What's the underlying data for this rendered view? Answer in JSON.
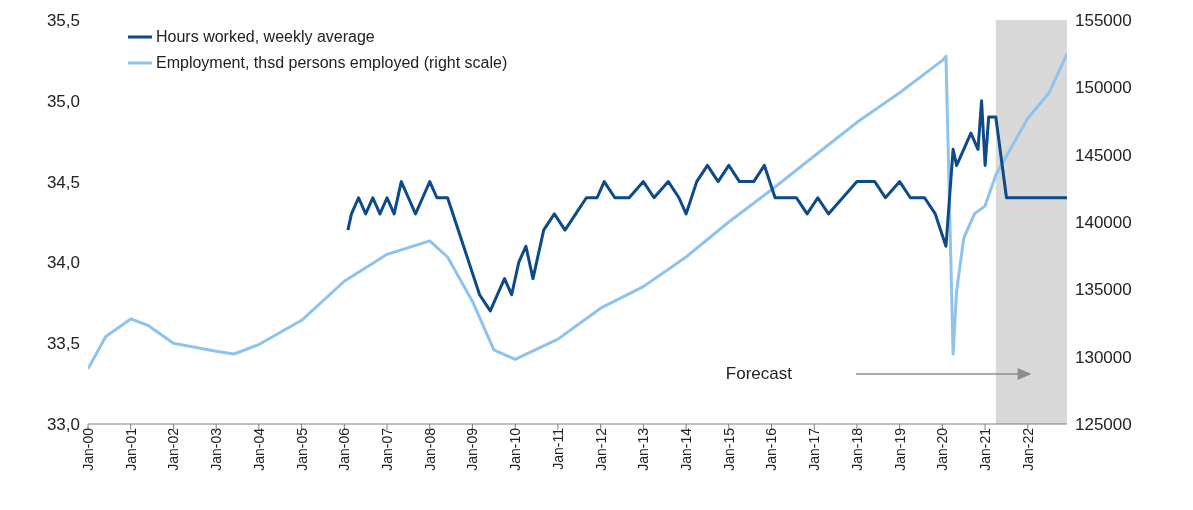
{
  "chart_data": {
    "type": "line",
    "legend": "top left",
    "xlim": [
      "2000-01",
      "2022-12"
    ],
    "xticks": [
      {
        "value": "2000-01",
        "label": "Jan-00"
      },
      {
        "value": "2001-01",
        "label": "Jan-01"
      },
      {
        "value": "2002-01",
        "label": "Jan-02"
      },
      {
        "value": "2003-01",
        "label": "Jan-03"
      },
      {
        "value": "2004-01",
        "label": "Jan-04"
      },
      {
        "value": "2005-01",
        "label": "Jan-05"
      },
      {
        "value": "2006-01",
        "label": "Jan-06"
      },
      {
        "value": "2007-01",
        "label": "Jan-07"
      },
      {
        "value": "2008-01",
        "label": "Jan-08"
      },
      {
        "value": "2009-01",
        "label": "Jan-09"
      },
      {
        "value": "2010-01",
        "label": "Jan-10"
      },
      {
        "value": "2011-01",
        "label": "Jan-11"
      },
      {
        "value": "2012-01",
        "label": "Jan-12"
      },
      {
        "value": "2013-01",
        "label": "Jan-13"
      },
      {
        "value": "2014-01",
        "label": "Jan-14"
      },
      {
        "value": "2015-01",
        "label": "Jan-15"
      },
      {
        "value": "2016-01",
        "label": "Jan-16"
      },
      {
        "value": "2017-01",
        "label": "Jan-17"
      },
      {
        "value": "2018-01",
        "label": "Jan-18"
      },
      {
        "value": "2019-01",
        "label": "Jan-19"
      },
      {
        "value": "2020-01",
        "label": "Jan-20"
      },
      {
        "value": "2021-01",
        "label": "Jan-21"
      },
      {
        "value": "2022-01",
        "label": "Jan-22"
      }
    ],
    "ylim": [
      33,
      35.5
    ],
    "yticks": [
      {
        "value": 33,
        "label": "33,0"
      },
      {
        "value": 33.5,
        "label": "33,5"
      },
      {
        "value": 34,
        "label": "34,0"
      },
      {
        "value": 34.5,
        "label": "34,5"
      },
      {
        "value": 35,
        "label": "35,0"
      },
      {
        "value": 35.5,
        "label": "35,5"
      }
    ],
    "y2lim": [
      125000,
      155000
    ],
    "y2ticks": [
      125000,
      130000,
      135000,
      140000,
      145000,
      150000,
      155000
    ],
    "bands": [
      {
        "axis": "x",
        "from": "2021-04",
        "to": "2022-12",
        "color": "#d9d9d9"
      }
    ],
    "annotations": [
      "Forecast"
    ],
    "series": [
      {
        "name": "Hours worked, weekly average",
        "color": "#0d4a8a",
        "x": [
          "2006-02",
          "2006-03",
          "2006-05",
          "2006-07",
          "2006-09",
          "2006-11",
          "2007-01",
          "2007-03",
          "2007-05",
          "2007-07",
          "2007-09",
          "2007-11",
          "2008-01",
          "2008-03",
          "2008-06",
          "2008-09",
          "2008-12",
          "2009-03",
          "2009-06",
          "2009-08",
          "2009-10",
          "2009-12",
          "2010-02",
          "2010-04",
          "2010-06",
          "2010-09",
          "2010-12",
          "2011-03",
          "2011-06",
          "2011-09",
          "2011-12",
          "2012-02",
          "2012-05",
          "2012-09",
          "2013-01",
          "2013-04",
          "2013-08",
          "2013-11",
          "2014-01",
          "2014-04",
          "2014-07",
          "2014-10",
          "2015-01",
          "2015-04",
          "2015-08",
          "2015-11",
          "2016-02",
          "2016-08",
          "2016-11",
          "2017-02",
          "2017-05",
          "2017-09",
          "2018-01",
          "2018-06",
          "2018-09",
          "2019-01",
          "2019-04",
          "2019-08",
          "2019-11",
          "2020-02",
          "2020-03",
          "2020-04",
          "2020-05",
          "2020-07",
          "2020-09",
          "2020-11",
          "2020-12",
          "2021-01",
          "2021-02",
          "2021-04",
          "2021-07",
          "2022-12"
        ],
        "values": [
          34.2,
          34.3,
          34.4,
          34.3,
          34.4,
          34.3,
          34.4,
          34.3,
          34.5,
          34.4,
          34.3,
          34.4,
          34.5,
          34.4,
          34.4,
          34.2,
          34.0,
          33.8,
          33.7,
          33.8,
          33.9,
          33.8,
          34.0,
          34.1,
          33.9,
          34.2,
          34.3,
          34.2,
          34.3,
          34.4,
          34.4,
          34.5,
          34.4,
          34.4,
          34.5,
          34.4,
          34.5,
          34.4,
          34.3,
          34.5,
          34.6,
          34.5,
          34.6,
          34.5,
          34.5,
          34.6,
          34.4,
          34.4,
          34.3,
          34.4,
          34.3,
          34.4,
          34.5,
          34.5,
          34.4,
          34.5,
          34.4,
          34.4,
          34.3,
          34.1,
          34.4,
          34.7,
          34.6,
          34.7,
          34.8,
          34.7,
          35.0,
          34.6,
          34.9,
          34.9,
          34.4,
          34.4
        ]
      },
      {
        "name": "Employment, thsd persons employed (right scale)",
        "color": "#8ec3ee",
        "axis": "y2",
        "x": [
          "2000-01",
          "2000-06",
          "2001-01",
          "2001-06",
          "2002-01",
          "2003-01",
          "2003-06",
          "2004-01",
          "2005-01",
          "2006-01",
          "2007-01",
          "2008-01",
          "2008-06",
          "2009-01",
          "2009-07",
          "2010-01",
          "2011-01",
          "2012-01",
          "2013-01",
          "2014-01",
          "2015-01",
          "2016-01",
          "2017-01",
          "2018-01",
          "2019-01",
          "2020-01",
          "2020-02",
          "2020-04",
          "2020-05",
          "2020-07",
          "2020-10",
          "2021-01",
          "2021-04",
          "2021-07",
          "2022-01",
          "2022-07",
          "2022-12"
        ],
        "values": [
          129100,
          131500,
          132800,
          132300,
          131000,
          130400,
          130200,
          130900,
          132700,
          135600,
          137600,
          138600,
          137400,
          134100,
          130500,
          129800,
          131300,
          133600,
          135200,
          137400,
          140000,
          142400,
          144900,
          147400,
          149600,
          152000,
          152300,
          130200,
          134900,
          138800,
          140600,
          141200,
          143500,
          144900,
          147700,
          149600,
          152500
        ]
      }
    ]
  }
}
